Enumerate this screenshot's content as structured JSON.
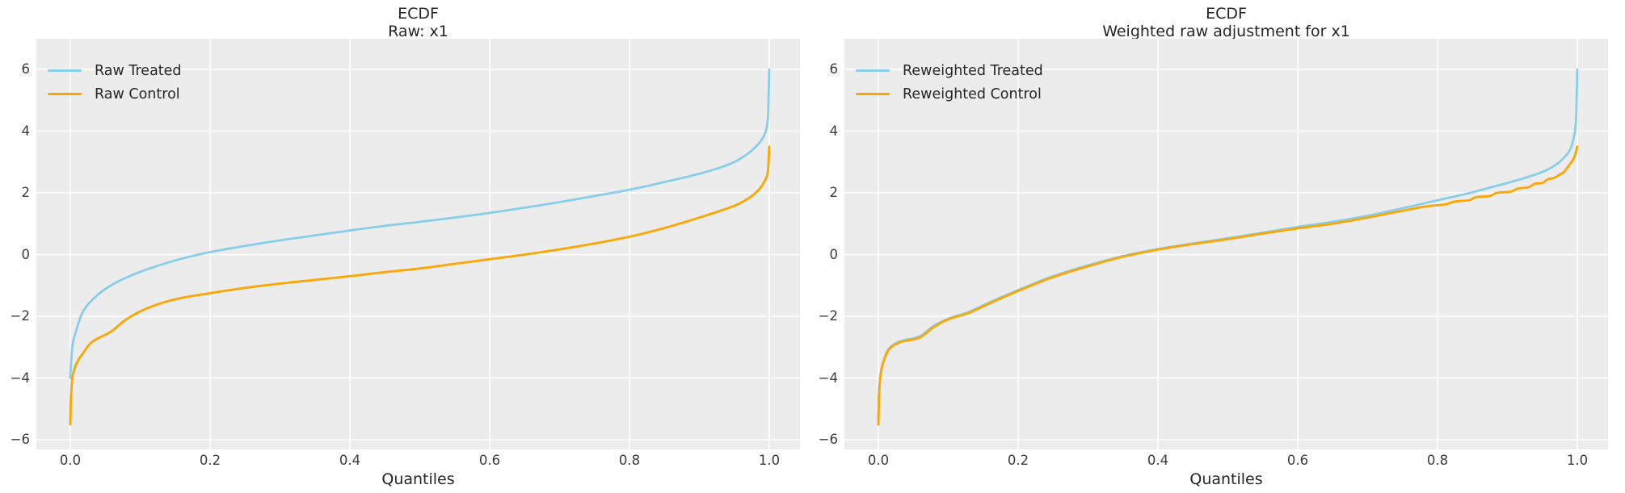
{
  "figure": {
    "background": "#ffffff",
    "axes_background": "#ececec",
    "grid_color": "#ffffff",
    "title_color": "#262626",
    "tick_color": "#3c3c3c"
  },
  "chart_data": [
    {
      "type": "line",
      "title_line1": "ECDF",
      "title_line2": "Raw: x1",
      "xlabel": "Quantiles",
      "grid": true,
      "legend_position": "upper left",
      "xlim": [
        -0.05,
        1.05
      ],
      "ylim": [
        -6.3,
        7.0
      ],
      "xticks": {
        "values": [
          0.0,
          0.2,
          0.4,
          0.6,
          0.8,
          1.0
        ],
        "labels": [
          "0.0",
          "0.2",
          "0.4",
          "0.6",
          "0.8",
          "1.0"
        ]
      },
      "yticks": {
        "values": [
          6,
          4,
          2,
          0,
          -2,
          -4,
          -6
        ],
        "labels": [
          "6",
          "4",
          "2",
          "0",
          "−2",
          "−4",
          "−6"
        ]
      },
      "series": [
        {
          "name": "Raw Treated",
          "color": "#87ceeb",
          "points": [
            [
              0.0,
              -4.0
            ],
            [
              0.001,
              -3.55
            ],
            [
              0.003,
              -2.95
            ],
            [
              0.008,
              -2.5
            ],
            [
              0.017,
              -1.9
            ],
            [
              0.03,
              -1.5
            ],
            [
              0.058,
              -1.0
            ],
            [
              0.08,
              -0.75
            ],
            [
              0.111,
              -0.47
            ],
            [
              0.165,
              -0.1
            ],
            [
              0.2,
              0.08
            ],
            [
              0.25,
              0.28
            ],
            [
              0.3,
              0.46
            ],
            [
              0.35,
              0.62
            ],
            [
              0.4,
              0.78
            ],
            [
              0.45,
              0.93
            ],
            [
              0.5,
              1.06
            ],
            [
              0.55,
              1.2
            ],
            [
              0.6,
              1.35
            ],
            [
              0.65,
              1.52
            ],
            [
              0.7,
              1.7
            ],
            [
              0.75,
              1.9
            ],
            [
              0.8,
              2.1
            ],
            [
              0.85,
              2.35
            ],
            [
              0.9,
              2.62
            ],
            [
              0.93,
              2.82
            ],
            [
              0.95,
              3.0
            ],
            [
              0.97,
              3.28
            ],
            [
              0.98,
              3.48
            ],
            [
              0.99,
              3.75
            ],
            [
              0.995,
              4.0
            ],
            [
              0.998,
              4.4
            ],
            [
              1.0,
              6.0
            ]
          ]
        },
        {
          "name": "Raw Control",
          "color": "#ffa500",
          "points": [
            [
              0.0,
              -5.5
            ],
            [
              0.001,
              -4.6
            ],
            [
              0.003,
              -4.0
            ],
            [
              0.006,
              -3.7
            ],
            [
              0.01,
              -3.48
            ],
            [
              0.018,
              -3.2
            ],
            [
              0.03,
              -2.85
            ],
            [
              0.058,
              -2.5
            ],
            [
              0.08,
              -2.1
            ],
            [
              0.111,
              -1.73
            ],
            [
              0.15,
              -1.45
            ],
            [
              0.2,
              -1.25
            ],
            [
              0.25,
              -1.08
            ],
            [
              0.3,
              -0.94
            ],
            [
              0.35,
              -0.82
            ],
            [
              0.4,
              -0.7
            ],
            [
              0.45,
              -0.57
            ],
            [
              0.5,
              -0.45
            ],
            [
              0.55,
              -0.3
            ],
            [
              0.6,
              -0.15
            ],
            [
              0.65,
              0.0
            ],
            [
              0.7,
              0.17
            ],
            [
              0.75,
              0.36
            ],
            [
              0.8,
              0.58
            ],
            [
              0.85,
              0.86
            ],
            [
              0.9,
              1.2
            ],
            [
              0.93,
              1.42
            ],
            [
              0.95,
              1.58
            ],
            [
              0.97,
              1.82
            ],
            [
              0.985,
              2.1
            ],
            [
              0.99,
              2.25
            ],
            [
              0.995,
              2.45
            ],
            [
              0.998,
              2.7
            ],
            [
              1.0,
              3.5
            ]
          ]
        }
      ]
    },
    {
      "type": "line",
      "title_line1": "ECDF",
      "title_line2": "Weighted raw adjustment for x1",
      "xlabel": "Quantiles",
      "grid": true,
      "legend_position": "upper left",
      "xlim": [
        -0.05,
        1.05
      ],
      "ylim": [
        -6.3,
        7.0
      ],
      "xticks": {
        "values": [
          0.0,
          0.2,
          0.4,
          0.6,
          0.8,
          1.0
        ],
        "labels": [
          "0.0",
          "0.2",
          "0.4",
          "0.6",
          "0.8",
          "1.0"
        ]
      },
      "yticks": {
        "values": [
          6,
          4,
          2,
          0,
          -2,
          -4,
          -6
        ],
        "labels": [
          "6",
          "4",
          "2",
          "0",
          "−2",
          "−4",
          "−6"
        ]
      },
      "series": [
        {
          "name": "Reweighted Treated",
          "color": "#87ceeb",
          "points": [
            [
              0.0,
              -5.5
            ],
            [
              0.001,
              -4.55
            ],
            [
              0.003,
              -3.92
            ],
            [
              0.008,
              -3.42
            ],
            [
              0.015,
              -3.05
            ],
            [
              0.03,
              -2.82
            ],
            [
              0.058,
              -2.66
            ],
            [
              0.08,
              -2.3
            ],
            [
              0.1,
              -2.08
            ],
            [
              0.127,
              -1.88
            ],
            [
              0.16,
              -1.54
            ],
            [
              0.2,
              -1.15
            ],
            [
              0.25,
              -0.7
            ],
            [
              0.3,
              -0.35
            ],
            [
              0.35,
              -0.05
            ],
            [
              0.4,
              0.18
            ],
            [
              0.45,
              0.36
            ],
            [
              0.5,
              0.53
            ],
            [
              0.55,
              0.71
            ],
            [
              0.607,
              0.92
            ],
            [
              0.65,
              1.06
            ],
            [
              0.7,
              1.26
            ],
            [
              0.75,
              1.5
            ],
            [
              0.8,
              1.76
            ],
            [
              0.847,
              2.0
            ],
            [
              0.88,
              2.2
            ],
            [
              0.9,
              2.32
            ],
            [
              0.93,
              2.52
            ],
            [
              0.95,
              2.68
            ],
            [
              0.97,
              2.92
            ],
            [
              0.98,
              3.12
            ],
            [
              0.99,
              3.42
            ],
            [
              0.995,
              3.8
            ],
            [
              0.998,
              4.3
            ],
            [
              1.0,
              6.0
            ]
          ]
        },
        {
          "name": "Reweighted Control",
          "color": "#ffa500",
          "points": [
            [
              0.0,
              -5.5
            ],
            [
              0.001,
              -4.55
            ],
            [
              0.003,
              -3.92
            ],
            [
              0.008,
              -3.42
            ],
            [
              0.015,
              -3.08
            ],
            [
              0.03,
              -2.85
            ],
            [
              0.058,
              -2.7
            ],
            [
              0.08,
              -2.34
            ],
            [
              0.1,
              -2.1
            ],
            [
              0.127,
              -1.91
            ],
            [
              0.16,
              -1.57
            ],
            [
              0.2,
              -1.18
            ],
            [
              0.25,
              -0.73
            ],
            [
              0.3,
              -0.38
            ],
            [
              0.35,
              -0.07
            ],
            [
              0.4,
              0.16
            ],
            [
              0.45,
              0.34
            ],
            [
              0.5,
              0.5
            ],
            [
              0.55,
              0.68
            ],
            [
              0.607,
              0.87
            ],
            [
              0.65,
              1.0
            ],
            [
              0.7,
              1.2
            ],
            [
              0.75,
              1.42
            ],
            [
              0.79,
              1.58
            ],
            [
              0.81,
              1.62
            ],
            [
              0.825,
              1.72
            ],
            [
              0.845,
              1.76
            ],
            [
              0.855,
              1.86
            ],
            [
              0.875,
              1.9
            ],
            [
              0.885,
              2.0
            ],
            [
              0.905,
              2.04
            ],
            [
              0.915,
              2.14
            ],
            [
              0.93,
              2.18
            ],
            [
              0.94,
              2.3
            ],
            [
              0.95,
              2.32
            ],
            [
              0.958,
              2.44
            ],
            [
              0.966,
              2.48
            ],
            [
              0.974,
              2.58
            ],
            [
              0.98,
              2.66
            ],
            [
              0.985,
              2.8
            ],
            [
              0.989,
              2.92
            ],
            [
              0.993,
              3.05
            ],
            [
              0.996,
              3.18
            ],
            [
              1.0,
              3.5
            ]
          ]
        }
      ]
    }
  ]
}
